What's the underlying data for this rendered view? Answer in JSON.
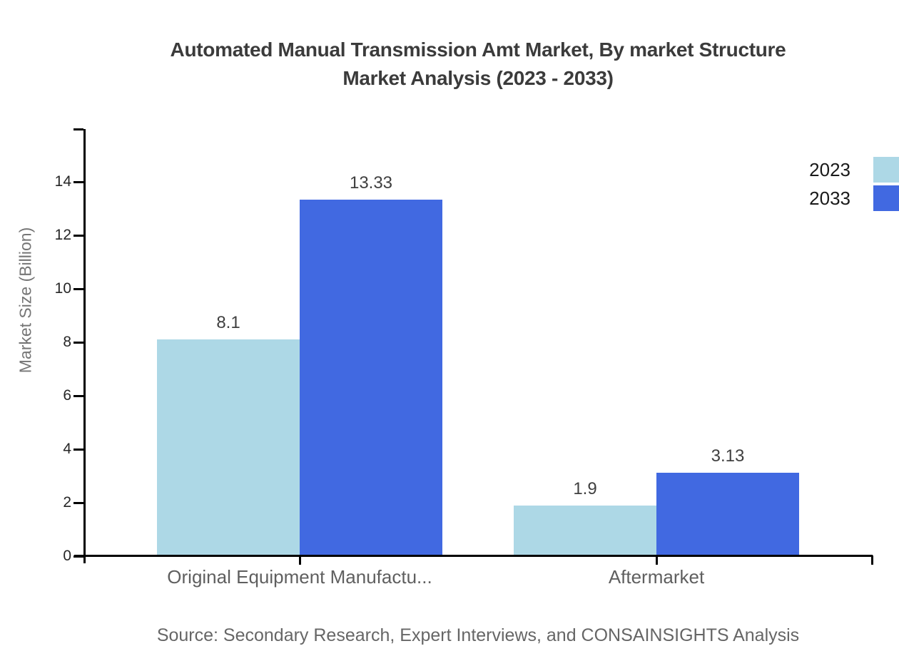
{
  "chart_data": {
    "type": "bar",
    "title_line1": "Automated Manual Transmission Amt Market, By market Structure",
    "title_line2": "Market Analysis (2023 - 2033)",
    "ylabel": "Market Size (Billion)",
    "xlabel": "",
    "categories": [
      "Original Equipment Manufactu...",
      "Aftermarket"
    ],
    "series": [
      {
        "name": "2023",
        "color": "#ADD8E6",
        "values": [
          8.1,
          1.9
        ]
      },
      {
        "name": "2033",
        "color": "#4169E1",
        "values": [
          13.33,
          3.13
        ]
      }
    ],
    "value_labels": [
      [
        "8.1",
        "1.9"
      ],
      [
        "13.33",
        "3.13"
      ]
    ],
    "yticks": [
      0,
      2,
      4,
      6,
      8,
      10,
      12,
      14
    ],
    "ylim": [
      0,
      16
    ],
    "grid": false,
    "legend_position": "top-right",
    "legend_entries": [
      "2023",
      "2033"
    ]
  },
  "source": "Source: Secondary Research, Expert Interviews, and CONSAINSIGHTS Analysis",
  "colors": {
    "background": "#ffffff",
    "title": "#3b3b3b",
    "axis": "#000000",
    "tick_label": "#262626",
    "category_label": "#5f5f5f",
    "value_label": "#3f3f3f",
    "ylabel": "#757575",
    "source": "#666666",
    "legend_label": "#1a1a1a",
    "series_2023": "#ADD8E6",
    "series_2033": "#4169E1"
  }
}
